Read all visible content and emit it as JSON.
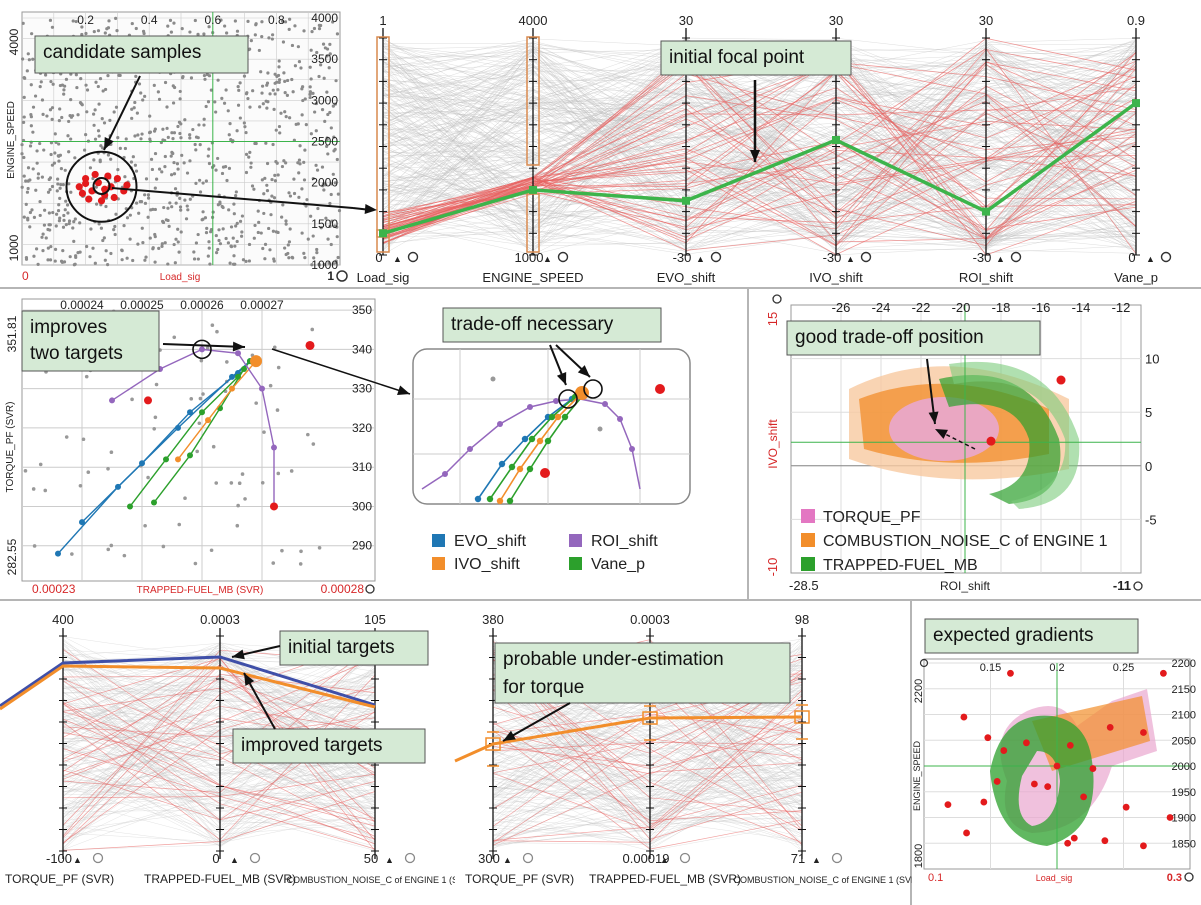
{
  "charts": [
    {
      "id": "scatter_load_engine",
      "type": "scatter",
      "xlabel": "Load_sig",
      "ylabel": "ENGINE_SPEED",
      "x_range_labels": [
        "0",
        "1"
      ],
      "x_ticks": [
        "0.2",
        "0.4",
        "0.6",
        "0.8"
      ],
      "y_ticks": [
        "1000",
        "1500",
        "2000",
        "2500",
        "3000",
        "3500",
        "4000"
      ],
      "y_left_labels": [
        "4000",
        "1000"
      ],
      "crosshair": {
        "x": 0.6,
        "y": 2500
      },
      "annotation": "candidate samples",
      "candidates": [
        [
          0.18,
          1950
        ],
        [
          0.2,
          2050
        ],
        [
          0.22,
          1900
        ],
        [
          0.24,
          2000
        ],
        [
          0.26,
          1850
        ],
        [
          0.28,
          1950
        ],
        [
          0.3,
          2050
        ],
        [
          0.25,
          1780
        ],
        [
          0.21,
          1800
        ],
        [
          0.29,
          1820
        ],
        [
          0.23,
          2100
        ],
        [
          0.32,
          1900
        ],
        [
          0.19,
          1870
        ],
        [
          0.27,
          2080
        ],
        [
          0.33,
          1970
        ],
        [
          0.2,
          1990
        ],
        [
          0.26,
          1920
        ]
      ]
    },
    {
      "id": "pcp_parameters",
      "type": "parallel_coordinates",
      "axes": [
        {
          "name": "Load_sig",
          "top": "1",
          "bottom": "0",
          "focal": 0.1
        },
        {
          "name": "ENGINE_SPEED",
          "top": "4000",
          "bottom": "1000",
          "focal": 0.3
        },
        {
          "name": "EVO_shift",
          "top": "30",
          "bottom": "-30",
          "focal": 0.25
        },
        {
          "name": "IVO_shift",
          "top": "30",
          "bottom": "-30",
          "focal": 0.53
        },
        {
          "name": "ROI_shift",
          "top": "30",
          "bottom": "-30",
          "focal": 0.2
        },
        {
          "name": "Vane_p",
          "top": "0.9",
          "bottom": "0",
          "focal": 0.7
        }
      ],
      "annotation": "initial focal point"
    },
    {
      "id": "scatter_fuel_torque",
      "type": "scatter",
      "xlabel": "TRAPPED-FUEL_MB (SVR)",
      "ylabel": "TORQUE_PF (SVR)",
      "x_range_labels": [
        "0.00023",
        "0.00028"
      ],
      "x_ticks": [
        "0.00024",
        "0.00025",
        "0.00026",
        "0.00027"
      ],
      "y_ticks": [
        "290",
        "300",
        "310",
        "320",
        "330",
        "340",
        "350"
      ],
      "y_left_labels": [
        "351.81",
        "282.55"
      ],
      "annotations": [
        "improves two targets",
        "trade-off necessary"
      ],
      "legend": [
        {
          "name": "EVO_shift",
          "color": "#1f77b4"
        },
        {
          "name": "IVO_shift",
          "color": "#f28e2b"
        },
        {
          "name": "ROI_shift",
          "color": "#9467bd"
        },
        {
          "name": "Vane_p",
          "color": "#2ca02c"
        }
      ]
    },
    {
      "id": "contour_roi_ivo",
      "type": "area",
      "xlabel": "ROI_shift",
      "ylabel": "IVO_shift",
      "x_range_labels": [
        "-28.5",
        "-11"
      ],
      "x_ticks": [
        "-26",
        "-24",
        "-22",
        "-20",
        "-18",
        "-16",
        "-14",
        "-12"
      ],
      "y_ticks": [
        "-5",
        "0",
        "5",
        "10"
      ],
      "y_left_labels": [
        "15",
        "-10"
      ],
      "annotation": "good trade-off position",
      "legend": [
        {
          "name": "TORQUE_PF",
          "color": "#e377c2"
        },
        {
          "name": "COMBUSTION_NOISE_C of ENGINE 1",
          "color": "#f28e2b"
        },
        {
          "name": "TRAPPED-FUEL_MB",
          "color": "#2ca02c"
        }
      ]
    },
    {
      "id": "pcp_targets_1",
      "type": "parallel_coordinates",
      "axes": [
        {
          "name": "TORQUE_PF (SVR)",
          "top": "400",
          "bottom": "-100"
        },
        {
          "name": "TRAPPED-FUEL_MB (SVR)",
          "top": "0.0003",
          "bottom": "0"
        },
        {
          "name": "COMBUSTION_NOISE_C of ENGINE 1 (SVR)",
          "top": "105",
          "bottom": "50"
        }
      ],
      "annotations": [
        "initial targets",
        "improved targets"
      ]
    },
    {
      "id": "pcp_targets_2",
      "type": "parallel_coordinates",
      "axes": [
        {
          "name": "TORQUE_PF (SVR)",
          "top": "380",
          "bottom": "300"
        },
        {
          "name": "TRAPPED-FUEL_MB (SVR)",
          "top": "0.0003",
          "bottom": "0.00019"
        },
        {
          "name": "COMBUSTION_NOISE_C of ENGINE 1 (SVR)",
          "top": "98",
          "bottom": "71"
        }
      ],
      "annotation": "probable under-estimation for torque"
    },
    {
      "id": "gradients_load_engine",
      "type": "area",
      "xlabel": "Load_sig",
      "ylabel": "ENGINE_SPEED",
      "x_range_labels": [
        "0.1",
        "0.3"
      ],
      "x_ticks": [
        "0.15",
        "0.2",
        "0.25"
      ],
      "y_ticks": [
        "1850",
        "1900",
        "1950",
        "2000",
        "2050",
        "2100",
        "2150",
        "2200"
      ],
      "y_left_labels": [
        "2200",
        "1800"
      ],
      "annotation": "expected gradients"
    }
  ]
}
